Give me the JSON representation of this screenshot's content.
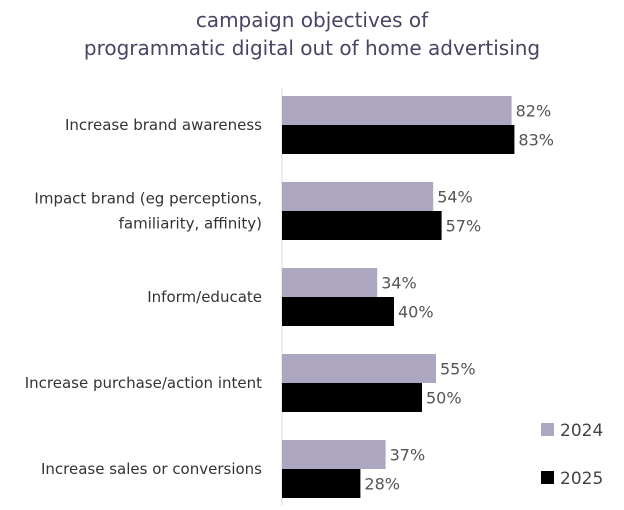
{
  "chart_data": {
    "type": "bar",
    "orientation": "horizontal",
    "title": "campaign objectives of programmatic digital out of home advertising",
    "title_lines": [
      "campaign objectives of",
      "programmatic digital out of home advertising"
    ],
    "categories": [
      [
        "Increase brand awareness"
      ],
      [
        "Impact brand (eg perceptions,",
        "familiarity, affinity)"
      ],
      [
        "Inform/educate"
      ],
      [
        "Increase purchase/action intent"
      ],
      [
        "Increase sales or conversions"
      ]
    ],
    "series": [
      {
        "name": "2024",
        "color": "#aca6c0",
        "values": [
          82,
          54,
          34,
          55,
          37
        ]
      },
      {
        "name": "2025",
        "color": "#000000",
        "values": [
          83,
          57,
          40,
          50,
          28
        ]
      }
    ],
    "value_suffix": "%",
    "xlim": [
      0,
      100
    ],
    "grid": false,
    "legend_position": "bottom-right"
  }
}
